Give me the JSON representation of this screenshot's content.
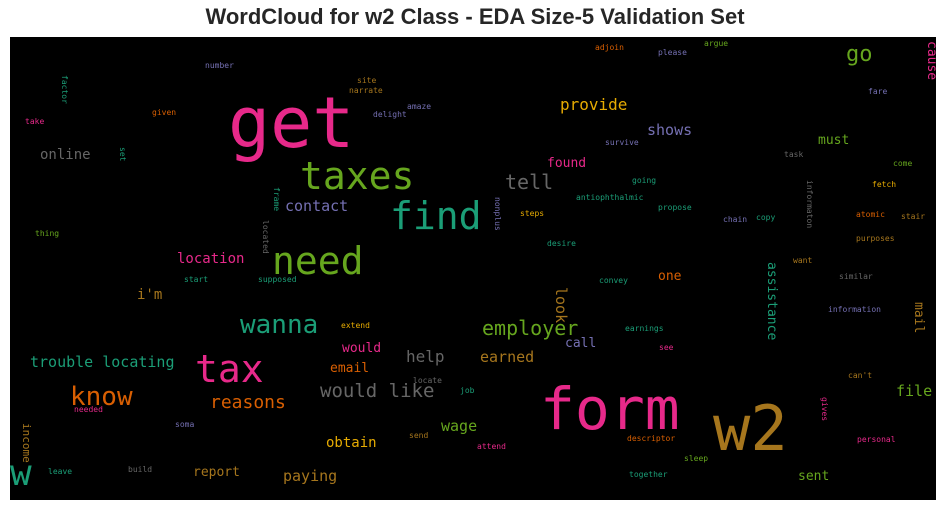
{
  "chart_data": {
    "type": "wordcloud",
    "title": "WordCloud for w2 Class - EDA Size-5 Validation Set",
    "background": "#000000",
    "words": [
      {
        "text": "get",
        "color": "#e7298a",
        "size": 70,
        "rot": 0
      },
      {
        "text": "form",
        "color": "#e7298a",
        "size": 58,
        "rot": 0
      },
      {
        "text": "w2",
        "color": "#a6761d",
        "size": 62,
        "rot": 0
      },
      {
        "text": "taxes",
        "color": "#66a61e",
        "size": 38,
        "rot": 0
      },
      {
        "text": "need",
        "color": "#66a61e",
        "size": 38,
        "rot": 0
      },
      {
        "text": "find",
        "color": "#1b9e77",
        "size": 38,
        "rot": 0
      },
      {
        "text": "tax",
        "color": "#e7298a",
        "size": 38,
        "rot": 0
      },
      {
        "text": "w",
        "color": "#1b9e77",
        "size": 36,
        "rot": 0
      },
      {
        "text": "wanna",
        "color": "#1b9e77",
        "size": 26,
        "rot": 0
      },
      {
        "text": "know",
        "color": "#d95f02",
        "size": 26,
        "rot": 0
      },
      {
        "text": "go",
        "color": "#66a61e",
        "size": 22,
        "rot": 0
      },
      {
        "text": "tell",
        "color": "#666666",
        "size": 20,
        "rot": 0
      },
      {
        "text": "employer",
        "color": "#66a61e",
        "size": 20,
        "rot": 0
      },
      {
        "text": "would like",
        "color": "#666666",
        "size": 19,
        "rot": 0
      },
      {
        "text": "reasons",
        "color": "#d95f02",
        "size": 18,
        "rot": 0
      },
      {
        "text": "provide",
        "color": "#e6ab02",
        "size": 16,
        "rot": 0
      },
      {
        "text": "shows",
        "color": "#7570b3",
        "size": 15,
        "rot": 0
      },
      {
        "text": "contact",
        "color": "#7570b3",
        "size": 15,
        "rot": 0
      },
      {
        "text": "online",
        "color": "#666666",
        "size": 14,
        "rot": 0
      },
      {
        "text": "trouble locating",
        "color": "#1b9e77",
        "size": 15,
        "rot": 0
      },
      {
        "text": "help",
        "color": "#666666",
        "size": 16,
        "rot": 0
      },
      {
        "text": "earned",
        "color": "#a6761d",
        "size": 15,
        "rot": 0
      },
      {
        "text": "location",
        "color": "#e7298a",
        "size": 14,
        "rot": 0
      },
      {
        "text": "i'm",
        "color": "#a6761d",
        "size": 14,
        "rot": 0
      },
      {
        "text": "look",
        "color": "#a6761d",
        "size": 15,
        "rot": 90
      },
      {
        "text": "one",
        "color": "#d95f02",
        "size": 13,
        "rot": 0
      },
      {
        "text": "found",
        "color": "#e7298a",
        "size": 13,
        "rot": 0
      },
      {
        "text": "must",
        "color": "#66a61e",
        "size": 13,
        "rot": 0
      },
      {
        "text": "cause",
        "color": "#e7298a",
        "size": 13,
        "rot": 90
      },
      {
        "text": "assistance",
        "color": "#1b9e77",
        "size": 13,
        "rot": 90
      },
      {
        "text": "mail",
        "color": "#a6761d",
        "size": 13,
        "rot": 90
      },
      {
        "text": "file",
        "color": "#66a61e",
        "size": 15,
        "rot": 0
      },
      {
        "text": "would",
        "color": "#e7298a",
        "size": 13,
        "rot": 0
      },
      {
        "text": "email",
        "color": "#d95f02",
        "size": 13,
        "rot": 0
      },
      {
        "text": "call",
        "color": "#7570b3",
        "size": 13,
        "rot": 0
      },
      {
        "text": "wage",
        "color": "#66a61e",
        "size": 15,
        "rot": 0
      },
      {
        "text": "obtain",
        "color": "#e6ab02",
        "size": 14,
        "rot": 0
      },
      {
        "text": "report",
        "color": "#a6761d",
        "size": 13,
        "rot": 0
      },
      {
        "text": "paying",
        "color": "#a6761d",
        "size": 15,
        "rot": 0
      },
      {
        "text": "sent",
        "color": "#66a61e",
        "size": 13,
        "rot": 0
      },
      {
        "text": "income",
        "color": "#a6761d",
        "size": 11,
        "rot": 90
      },
      {
        "text": "number",
        "color": "#7570b3",
        "size": 8,
        "rot": 0
      },
      {
        "text": "factor",
        "color": "#1b9e77",
        "size": 8,
        "rot": 90
      },
      {
        "text": "take",
        "color": "#e7298a",
        "size": 8,
        "rot": 0
      },
      {
        "text": "given",
        "color": "#d95f02",
        "size": 8,
        "rot": 0
      },
      {
        "text": "set",
        "color": "#1b9e77",
        "size": 8,
        "rot": 90
      },
      {
        "text": "site",
        "color": "#a6761d",
        "size": 8,
        "rot": 0
      },
      {
        "text": "narrate",
        "color": "#a6761d",
        "size": 8,
        "rot": 0
      },
      {
        "text": "amaze",
        "color": "#7570b3",
        "size": 8,
        "rot": 0
      },
      {
        "text": "delight",
        "color": "#7570b3",
        "size": 8,
        "rot": 0
      },
      {
        "text": "adjoin",
        "color": "#d95f02",
        "size": 8,
        "rot": 0
      },
      {
        "text": "please",
        "color": "#7570b3",
        "size": 8,
        "rot": 0
      },
      {
        "text": "argue",
        "color": "#66a61e",
        "size": 8,
        "rot": 0
      },
      {
        "text": "fare",
        "color": "#7570b3",
        "size": 8,
        "rot": 0
      },
      {
        "text": "survive",
        "color": "#7570b3",
        "size": 8,
        "rot": 0
      },
      {
        "text": "task",
        "color": "#666666",
        "size": 8,
        "rot": 0
      },
      {
        "text": "come",
        "color": "#66a61e",
        "size": 8,
        "rot": 0
      },
      {
        "text": "going",
        "color": "#1b9e77",
        "size": 8,
        "rot": 0
      },
      {
        "text": "fetch",
        "color": "#e6ab02",
        "size": 8,
        "rot": 0
      },
      {
        "text": "frame",
        "color": "#1b9e77",
        "size": 8,
        "rot": 90
      },
      {
        "text": "antiophthalmic",
        "color": "#1b9e77",
        "size": 8,
        "rot": 0
      },
      {
        "text": "informaton",
        "color": "#666666",
        "size": 8,
        "rot": 90
      },
      {
        "text": "steps",
        "color": "#e6ab02",
        "size": 8,
        "rot": 0
      },
      {
        "text": "nonplus",
        "color": "#7570b3",
        "size": 8,
        "rot": 90
      },
      {
        "text": "propose",
        "color": "#1b9e77",
        "size": 8,
        "rot": 0
      },
      {
        "text": "chain",
        "color": "#7570b3",
        "size": 8,
        "rot": 0
      },
      {
        "text": "copy",
        "color": "#1b9e77",
        "size": 8,
        "rot": 0
      },
      {
        "text": "atomic",
        "color": "#d95f02",
        "size": 8,
        "rot": 0
      },
      {
        "text": "stair",
        "color": "#a6761d",
        "size": 8,
        "rot": 0
      },
      {
        "text": "thing",
        "color": "#66a61e",
        "size": 8,
        "rot": 0
      },
      {
        "text": "located",
        "color": "#666666",
        "size": 8,
        "rot": 90
      },
      {
        "text": "desire",
        "color": "#1b9e77",
        "size": 8,
        "rot": 0
      },
      {
        "text": "purposes",
        "color": "#a6761d",
        "size": 8,
        "rot": 0
      },
      {
        "text": "want",
        "color": "#a6761d",
        "size": 8,
        "rot": 0
      },
      {
        "text": "start",
        "color": "#1b9e77",
        "size": 8,
        "rot": 0
      },
      {
        "text": "supposed",
        "color": "#1b9e77",
        "size": 8,
        "rot": 0
      },
      {
        "text": "convey",
        "color": "#1b9e77",
        "size": 8,
        "rot": 0
      },
      {
        "text": "similar",
        "color": "#666666",
        "size": 8,
        "rot": 0
      },
      {
        "text": "information",
        "color": "#7570b3",
        "size": 8,
        "rot": 0
      },
      {
        "text": "extend",
        "color": "#e6ab02",
        "size": 8,
        "rot": 0
      },
      {
        "text": "earnings",
        "color": "#1b9e77",
        "size": 8,
        "rot": 0
      },
      {
        "text": "see",
        "color": "#e7298a",
        "size": 8,
        "rot": 0
      },
      {
        "text": "can't",
        "color": "#a6761d",
        "size": 8,
        "rot": 0
      },
      {
        "text": "gives",
        "color": "#e7298a",
        "size": 8,
        "rot": 90
      },
      {
        "text": "locate",
        "color": "#666666",
        "size": 8,
        "rot": 0
      },
      {
        "text": "job",
        "color": "#1b9e77",
        "size": 8,
        "rot": 0
      },
      {
        "text": "needed",
        "color": "#e7298a",
        "size": 8,
        "rot": 0
      },
      {
        "text": "soma",
        "color": "#7570b3",
        "size": 8,
        "rot": 0
      },
      {
        "text": "send",
        "color": "#a6761d",
        "size": 8,
        "rot": 0
      },
      {
        "text": "attend",
        "color": "#e7298a",
        "size": 8,
        "rot": 0
      },
      {
        "text": "descriptor",
        "color": "#d95f02",
        "size": 8,
        "rot": 0
      },
      {
        "text": "personal",
        "color": "#e7298a",
        "size": 8,
        "rot": 0
      },
      {
        "text": "leave",
        "color": "#1b9e77",
        "size": 8,
        "rot": 0
      },
      {
        "text": "build",
        "color": "#666666",
        "size": 8,
        "rot": 0
      },
      {
        "text": "together",
        "color": "#1b9e77",
        "size": 8,
        "rot": 0
      },
      {
        "text": "sleep",
        "color": "#66a61e",
        "size": 8,
        "rot": 0
      }
    ]
  }
}
